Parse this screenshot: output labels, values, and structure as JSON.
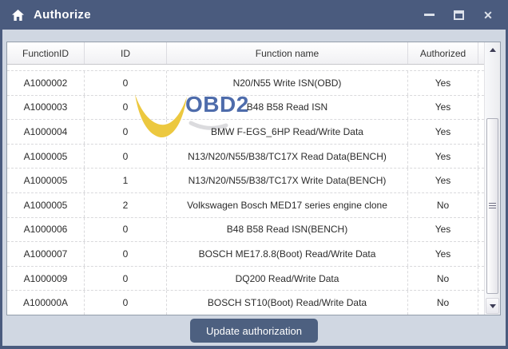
{
  "window": {
    "title": "Authorize",
    "close_glyph": "✕"
  },
  "table": {
    "columns": [
      "FunctionID",
      "ID",
      "Function name",
      "Authorized"
    ],
    "rows": [
      [
        "A1000002",
        "0",
        "N20/N55 Write ISN(OBD)",
        "Yes"
      ],
      [
        "A1000003",
        "0",
        "B48 B58 Read ISN",
        "Yes"
      ],
      [
        "A1000004",
        "0",
        "BMW F-EGS_6HP Read/Write Data",
        "Yes"
      ],
      [
        "A1000005",
        "0",
        "N13/N20/N55/B38/TC17X Read Data(BENCH)",
        "Yes"
      ],
      [
        "A1000005",
        "1",
        "N13/N20/N55/B38/TC17X Write Data(BENCH)",
        "Yes"
      ],
      [
        "A1000005",
        "2",
        "Volkswagen Bosch MED17 series engine clone",
        "No"
      ],
      [
        "A1000006",
        "0",
        "B48 B58 Read ISN(BENCH)",
        "Yes"
      ],
      [
        "A1000007",
        "0",
        "BOSCH ME17.8.8(Boot) Read/Write Data",
        "Yes"
      ],
      [
        "A1000009",
        "0",
        "DQ200 Read/Write Data",
        "No"
      ],
      [
        "A100000A",
        "0",
        "BOSCH ST10(Boot) Read/Write Data",
        "No"
      ]
    ]
  },
  "watermark": {
    "text": "OBD2"
  },
  "footer": {
    "update_button": "Update authorization"
  },
  "colors": {
    "titlebar": "#4a5b7e",
    "background": "#d0d7e2",
    "button": "#4d6080",
    "logo_yellow": "#ecc83f",
    "logo_blue": "#4e6cab"
  }
}
